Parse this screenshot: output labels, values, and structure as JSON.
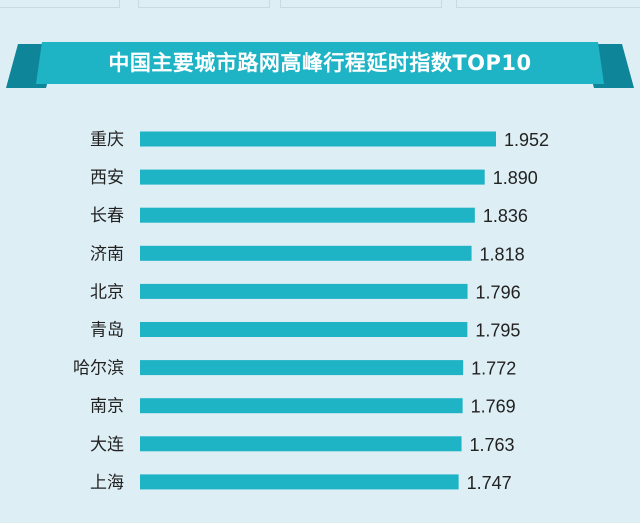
{
  "chart_data": {
    "type": "bar",
    "orientation": "horizontal",
    "title": "中国主要城市路网高峰行程延时指数TOP10",
    "categories": [
      "重庆",
      "西安",
      "长春",
      "济南",
      "北京",
      "青岛",
      "哈尔滨",
      "南京",
      "大连",
      "上海"
    ],
    "values": [
      1.952,
      1.89,
      1.836,
      1.818,
      1.796,
      1.795,
      1.772,
      1.769,
      1.763,
      1.747
    ],
    "value_labels": [
      "1.952",
      "1.890",
      "1.836",
      "1.818",
      "1.796",
      "1.795",
      "1.772",
      "1.769",
      "1.763",
      "1.747"
    ],
    "xlabel": "",
    "ylabel": "",
    "grid": false,
    "legend": "none",
    "colors": {
      "bar": "#1fb3c6",
      "banner": "#1fb3c6",
      "banner_dark": "#0e8598",
      "background": "#ddeef5",
      "label": "#222222"
    }
  }
}
